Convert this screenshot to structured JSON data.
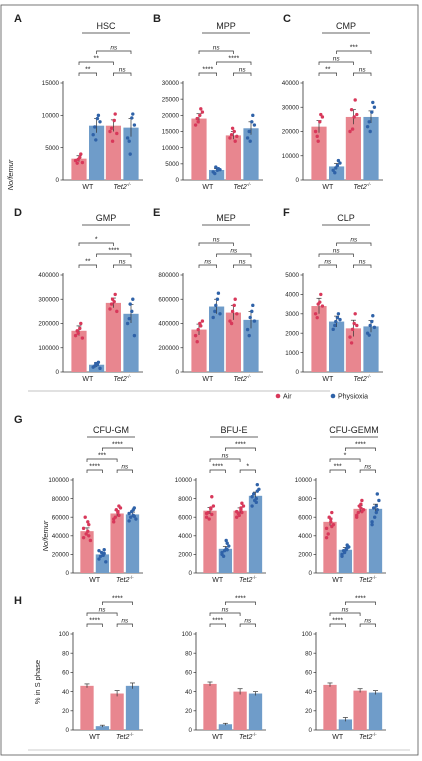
{
  "figure": {
    "y_label_top": "No/femur",
    "y_label_middle": "No/femur",
    "y_label_bottom": "% in S phase",
    "legend": [
      {
        "label": "Air",
        "color": "#e8868f"
      },
      {
        "label": "Physioxia",
        "color": "#6f9cc9"
      }
    ],
    "colors": {
      "air": "#e8868f",
      "physioxia": "#6f9cc9",
      "air_point": "#d8385a",
      "physioxia_point": "#2f62a8"
    }
  },
  "chart_data": [
    {
      "panel": "A",
      "title": "HSC",
      "type": "bar",
      "categories": [
        "WT",
        "Tet2-/-"
      ],
      "ylim": [
        0,
        15000
      ],
      "yticks": [
        0,
        5000,
        10000,
        15000
      ],
      "series": [
        {
          "name": "Air",
          "values": [
            3300,
            8400
          ],
          "errors": [
            450,
            900
          ]
        },
        {
          "name": "Physioxia",
          "values": [
            8400,
            8100
          ],
          "errors": [
            1100,
            1400
          ]
        }
      ],
      "points": [
        [
          3000,
          3500,
          4000,
          2600,
          3200,
          2700
        ],
        [
          7000,
          9500,
          10000,
          8200,
          6200,
          9000
        ],
        [
          7500,
          9200,
          10200,
          8000,
          6000,
          7200
        ],
        [
          6500,
          9600,
          10200,
          6000,
          4000,
          8500
        ]
      ],
      "significance": [
        {
          "label": "**",
          "from": 0,
          "to": 1
        },
        {
          "label": "ns",
          "from": 2,
          "to": 3
        },
        {
          "label": "**",
          "from": 0,
          "to": 2
        },
        {
          "label": "ns",
          "from": 1,
          "to": 3
        }
      ]
    },
    {
      "panel": "B",
      "title": "MPP",
      "type": "bar",
      "categories": [
        "WT",
        "Tet2-/-"
      ],
      "ylim": [
        0,
        30000
      ],
      "yticks": [
        0,
        5000,
        10000,
        15000,
        20000,
        25000,
        30000
      ],
      "series": [
        {
          "name": "Air",
          "values": [
            19000,
            13800
          ],
          "errors": [
            1500,
            1200
          ]
        },
        {
          "name": "Physioxia",
          "values": [
            3100,
            16000
          ],
          "errors": [
            400,
            2000
          ]
        }
      ],
      "points": [
        [
          17000,
          20000,
          22000,
          19000,
          18000,
          21000
        ],
        [
          2500,
          3000,
          3500,
          2000,
          4000,
          3200
        ],
        [
          13000,
          15000,
          12000,
          14000,
          16000,
          13500
        ],
        [
          13000,
          18000,
          20000,
          15000,
          12000,
          17000
        ]
      ],
      "significance": [
        {
          "label": "****",
          "from": 0,
          "to": 1
        },
        {
          "label": "ns",
          "from": 2,
          "to": 3
        },
        {
          "label": "****",
          "from": 1,
          "to": 3
        },
        {
          "label": "ns",
          "from": 0,
          "to": 2
        }
      ]
    },
    {
      "panel": "C",
      "title": "CMP",
      "type": "bar",
      "categories": [
        "WT",
        "Tet2-/-"
      ],
      "ylim": [
        0,
        40000
      ],
      "yticks": [
        0,
        10000,
        20000,
        30000,
        40000
      ],
      "series": [
        {
          "name": "Air",
          "values": [
            22000,
            26000
          ],
          "errors": [
            2500,
            3000
          ]
        },
        {
          "name": "Physioxia",
          "values": [
            5600,
            26000
          ],
          "errors": [
            1200,
            2500
          ]
        }
      ],
      "points": [
        [
          20000,
          24000,
          27000,
          18000,
          16000,
          26000
        ],
        [
          4000,
          6000,
          8000,
          3000,
          5000,
          7000
        ],
        [
          20000,
          26000,
          33000,
          29000,
          21000,
          27000
        ],
        [
          22000,
          28000,
          32000,
          24000,
          20000,
          30000
        ]
      ],
      "significance": [
        {
          "label": "**",
          "from": 0,
          "to": 1
        },
        {
          "label": "ns",
          "from": 2,
          "to": 3
        },
        {
          "label": "ns",
          "from": 0,
          "to": 2
        },
        {
          "label": "***",
          "from": 1,
          "to": 3
        }
      ]
    },
    {
      "panel": "D",
      "title": "GMP",
      "type": "bar",
      "categories": [
        "WT",
        "Tet2-/-"
      ],
      "ylim": [
        0,
        400000
      ],
      "yticks": [
        0,
        100000,
        200000,
        300000,
        400000
      ],
      "series": [
        {
          "name": "Air",
          "values": [
            170000,
            285000
          ],
          "errors": [
            20000,
            20000
          ]
        },
        {
          "name": "Physioxia",
          "values": [
            30000,
            240000
          ],
          "errors": [
            9000,
            38000
          ]
        }
      ],
      "points": [
        [
          150000,
          180000,
          200000,
          170000,
          160000,
          140000
        ],
        [
          20000,
          30000,
          40000,
          25000,
          35000,
          15000
        ],
        [
          260000,
          290000,
          320000,
          280000,
          300000,
          250000
        ],
        [
          200000,
          250000,
          300000,
          220000,
          280000,
          150000
        ]
      ],
      "significance": [
        {
          "label": "**",
          "from": 0,
          "to": 1
        },
        {
          "label": "ns",
          "from": 2,
          "to": 3
        },
        {
          "label": "****",
          "from": 1,
          "to": 3
        },
        {
          "label": "*",
          "from": 0,
          "to": 2
        }
      ]
    },
    {
      "panel": "E",
      "title": "MEP",
      "type": "bar",
      "categories": [
        "WT",
        "Tet2-/-"
      ],
      "ylim": [
        0,
        800000
      ],
      "yticks": [
        0,
        200000,
        400000,
        600000,
        800000
      ],
      "series": [
        {
          "name": "Air",
          "values": [
            350000,
            490000
          ],
          "errors": [
            45000,
            60000
          ]
        },
        {
          "name": "Physioxia",
          "values": [
            540000,
            430000
          ],
          "errors": [
            60000,
            70000
          ]
        }
      ],
      "points": [
        [
          300000,
          400000,
          380000,
          250000,
          350000,
          420000
        ],
        [
          450000,
          600000,
          650000,
          500000,
          550000,
          480000
        ],
        [
          420000,
          550000,
          600000,
          400000,
          500000,
          480000
        ],
        [
          350000,
          500000,
          550000,
          300000,
          450000,
          420000
        ]
      ],
      "significance": [
        {
          "label": "ns",
          "from": 0,
          "to": 1
        },
        {
          "label": "ns",
          "from": 2,
          "to": 3
        },
        {
          "label": "ns",
          "from": 1,
          "to": 3
        },
        {
          "label": "ns",
          "from": 0,
          "to": 2
        }
      ]
    },
    {
      "panel": "F",
      "title": "CLP",
      "type": "bar",
      "categories": [
        "WT",
        "Tet2-/-"
      ],
      "ylim": [
        0,
        5000
      ],
      "yticks": [
        0,
        1000,
        2000,
        3000,
        4000,
        5000
      ],
      "series": [
        {
          "name": "Air",
          "values": [
            3400,
            2250
          ],
          "errors": [
            400,
            420
          ]
        },
        {
          "name": "Physioxia",
          "values": [
            2600,
            2350
          ],
          "errors": [
            280,
            300
          ]
        }
      ],
      "points": [
        [
          3000,
          3600,
          4000,
          2800,
          3500,
          3400
        ],
        [
          2200,
          2800,
          3000,
          2400,
          2600,
          2700
        ],
        [
          1800,
          2500,
          3000,
          1500,
          2200,
          2400
        ],
        [
          2000,
          2600,
          2900,
          1900,
          2400,
          2300
        ]
      ],
      "significance": [
        {
          "label": "ns",
          "from": 0,
          "to": 1
        },
        {
          "label": "ns",
          "from": 2,
          "to": 3
        },
        {
          "label": "ns",
          "from": 0,
          "to": 2
        },
        {
          "label": "ns",
          "from": 1,
          "to": 3
        }
      ]
    },
    {
      "panel": "G",
      "title": "CFU-GM",
      "type": "bar",
      "categories": [
        "WT",
        "Tet2-/-"
      ],
      "ylim": [
        0,
        100000
      ],
      "yticks": [
        0,
        20000,
        40000,
        60000,
        80000,
        100000
      ],
      "series": [
        {
          "name": "Air",
          "values": [
            45000,
            64000
          ],
          "errors": [
            3500,
            3000
          ]
        },
        {
          "name": "Physioxia",
          "values": [
            20000,
            63000
          ],
          "errors": [
            2000,
            2500
          ]
        }
      ],
      "points": [
        [
          38000,
          45000,
          52000,
          60000,
          42000,
          35000,
          48000,
          55000,
          40000
        ],
        [
          15000,
          20000,
          25000,
          18000,
          22000,
          12000,
          24000,
          19000,
          21000
        ],
        [
          58000,
          65000,
          72000,
          60000,
          68000,
          70000,
          55000,
          66000,
          62000
        ],
        [
          56000,
          62000,
          70000,
          60000,
          66000,
          58000,
          64000,
          68000,
          61000
        ]
      ],
      "significance": [
        {
          "label": "****",
          "from": 0,
          "to": 1
        },
        {
          "label": "ns",
          "from": 2,
          "to": 3
        },
        {
          "label": "***",
          "from": 0,
          "to": 2
        },
        {
          "label": "****",
          "from": 1,
          "to": 3
        }
      ]
    },
    {
      "panel": "G",
      "title": "BFU-E",
      "type": "bar",
      "categories": [
        "WT",
        "Tet2-/-"
      ],
      "ylim": [
        0,
        10000
      ],
      "yticks": [
        0,
        2000,
        4000,
        6000,
        8000,
        10000
      ],
      "series": [
        {
          "name": "Air",
          "values": [
            6700,
            6700
          ],
          "errors": [
            350,
            300
          ]
        },
        {
          "name": "Physioxia",
          "values": [
            2600,
            8300
          ],
          "errors": [
            250,
            400
          ]
        }
      ],
      "points": [
        [
          6000,
          7000,
          8200,
          6500,
          5800,
          7200,
          6400,
          6900,
          6300
        ],
        [
          2000,
          2600,
          3200,
          1800,
          2400,
          2900,
          2200,
          3500,
          2500
        ],
        [
          6000,
          6800,
          7500,
          6400,
          6200,
          7200,
          6600,
          7000,
          6500
        ],
        [
          7200,
          8000,
          9500,
          8500,
          7800,
          9000,
          8200,
          7600,
          8800
        ]
      ],
      "significance": [
        {
          "label": "****",
          "from": 0,
          "to": 1
        },
        {
          "label": "*",
          "from": 2,
          "to": 3
        },
        {
          "label": "ns",
          "from": 0,
          "to": 2
        },
        {
          "label": "****",
          "from": 1,
          "to": 3
        }
      ]
    },
    {
      "panel": "G",
      "title": "CFU-GEMM",
      "type": "bar",
      "categories": [
        "WT",
        "Tet2-/-"
      ],
      "ylim": [
        0,
        10000
      ],
      "yticks": [
        0,
        2000,
        4000,
        6000,
        8000,
        10000
      ],
      "series": [
        {
          "name": "Air",
          "values": [
            5500,
            6900
          ],
          "errors": [
            400,
            350
          ]
        },
        {
          "name": "Physioxia",
          "values": [
            2500,
            6900
          ],
          "errors": [
            250,
            500
          ]
        }
      ],
      "points": [
        [
          4800,
          5500,
          6500,
          4200,
          6000,
          5200,
          3800,
          5800,
          5000
        ],
        [
          2000,
          2600,
          3000,
          2400,
          2200,
          2800,
          1800,
          2500,
          2700
        ],
        [
          6000,
          7000,
          7800,
          6500,
          7200,
          6800,
          6200,
          7400,
          6600
        ],
        [
          5500,
          6500,
          8500,
          7000,
          6000,
          7800,
          5200,
          7200,
          6800
        ]
      ],
      "significance": [
        {
          "label": "***",
          "from": 0,
          "to": 1
        },
        {
          "label": "ns",
          "from": 2,
          "to": 3
        },
        {
          "label": "*",
          "from": 0,
          "to": 2
        },
        {
          "label": "****",
          "from": 1,
          "to": 3
        }
      ]
    },
    {
      "panel": "H",
      "type": "bar",
      "categories": [
        "WT",
        "Tet2-/-"
      ],
      "ylim": [
        0,
        100
      ],
      "yticks": [
        0,
        20,
        40,
        60,
        80,
        100
      ],
      "series": [
        {
          "name": "Air",
          "values": [
            46,
            38
          ],
          "errors": [
            2,
            3
          ]
        },
        {
          "name": "Physioxia",
          "values": [
            4,
            46
          ],
          "errors": [
            1,
            3
          ]
        }
      ],
      "significance": [
        {
          "label": "****",
          "from": 0,
          "to": 1
        },
        {
          "label": "ns",
          "from": 2,
          "to": 3
        },
        {
          "label": "ns",
          "from": 0,
          "to": 2
        },
        {
          "label": "****",
          "from": 1,
          "to": 3
        }
      ]
    },
    {
      "panel": "H",
      "type": "bar",
      "categories": [
        "WT",
        "Tet2-/-"
      ],
      "ylim": [
        0,
        100
      ],
      "yticks": [
        0,
        20,
        40,
        60,
        80,
        100
      ],
      "series": [
        {
          "name": "Air",
          "values": [
            48,
            40
          ],
          "errors": [
            2,
            3
          ]
        },
        {
          "name": "Physioxia",
          "values": [
            6,
            38
          ],
          "errors": [
            1,
            2
          ]
        }
      ],
      "significance": [
        {
          "label": "****",
          "from": 0,
          "to": 1
        },
        {
          "label": "ns",
          "from": 2,
          "to": 3
        },
        {
          "label": "ns",
          "from": 0,
          "to": 2
        },
        {
          "label": "****",
          "from": 1,
          "to": 3
        }
      ]
    },
    {
      "panel": "H",
      "type": "bar",
      "categories": [
        "WT",
        "Tet2-/-"
      ],
      "ylim": [
        0,
        100
      ],
      "yticks": [
        0,
        20,
        40,
        60,
        80,
        100
      ],
      "series": [
        {
          "name": "Air",
          "values": [
            47,
            41
          ],
          "errors": [
            2,
            2
          ]
        },
        {
          "name": "Physioxia",
          "values": [
            11,
            39
          ],
          "errors": [
            2,
            2
          ]
        }
      ],
      "significance": [
        {
          "label": "****",
          "from": 0,
          "to": 1
        },
        {
          "label": "ns",
          "from": 2,
          "to": 3
        },
        {
          "label": "ns",
          "from": 0,
          "to": 2
        },
        {
          "label": "****",
          "from": 1,
          "to": 3
        }
      ]
    }
  ]
}
